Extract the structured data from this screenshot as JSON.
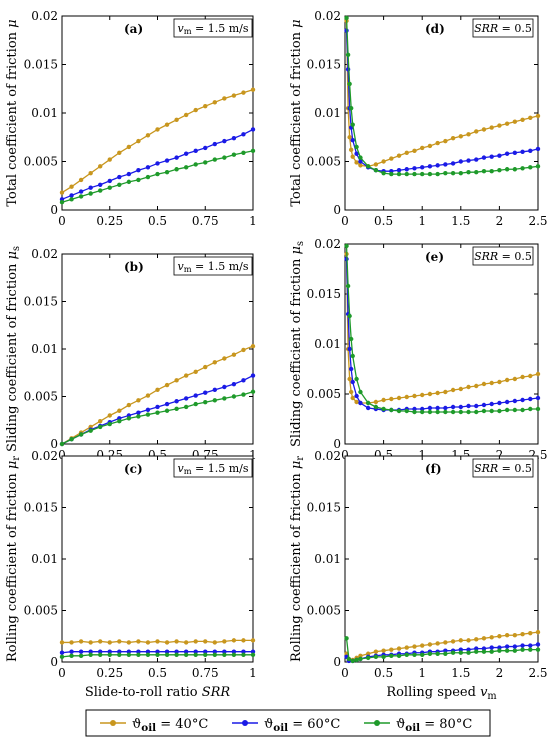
{
  "figure": {
    "legend": [
      {
        "label": "ϑoil = 40°C",
        "color": "#c8961e"
      },
      {
        "label": "ϑoil = 60°C",
        "color": "#1a1ae6"
      },
      {
        "label": "ϑoil = 80°C",
        "color": "#1e9a2a"
      }
    ]
  },
  "chart_data": [
    {
      "id": "a",
      "type": "line",
      "panel_label": "(a)",
      "annotation": "vm = 1.5 m/s",
      "xlabel": "",
      "ylabel": "Total coefficient of friction μ",
      "xlim": [
        0,
        1
      ],
      "ylim": [
        0,
        0.02
      ],
      "xticks": [
        "0",
        "0.25",
        "0.5",
        "0.75",
        "1"
      ],
      "yticks": [
        "0",
        "0.005",
        "0.01",
        "0.015",
        "0.02"
      ],
      "x": [
        0,
        0.05,
        0.1,
        0.15,
        0.2,
        0.25,
        0.3,
        0.35,
        0.4,
        0.45,
        0.5,
        0.55,
        0.6,
        0.65,
        0.7,
        0.75,
        0.8,
        0.85,
        0.9,
        0.95,
        1.0
      ],
      "series": [
        {
          "name": "ϑoil = 40°C",
          "color": "#c8961e",
          "values": [
            0.0018,
            0.0024,
            0.0031,
            0.0038,
            0.0045,
            0.0052,
            0.0059,
            0.0065,
            0.0071,
            0.0077,
            0.0083,
            0.0088,
            0.0093,
            0.0098,
            0.0103,
            0.0107,
            0.0111,
            0.0115,
            0.0118,
            0.0121,
            0.0124
          ]
        },
        {
          "name": "ϑoil = 60°C",
          "color": "#1a1ae6",
          "values": [
            0.0011,
            0.0015,
            0.0019,
            0.0023,
            0.0026,
            0.003,
            0.0034,
            0.0037,
            0.0041,
            0.0044,
            0.0048,
            0.0051,
            0.0054,
            0.0058,
            0.0061,
            0.0064,
            0.0068,
            0.0071,
            0.0074,
            0.0078,
            0.0083
          ]
        },
        {
          "name": "ϑoil = 80°C",
          "color": "#1e9a2a",
          "values": [
            0.0008,
            0.0011,
            0.0014,
            0.0017,
            0.002,
            0.0023,
            0.0026,
            0.0029,
            0.0031,
            0.0034,
            0.0037,
            0.0039,
            0.0042,
            0.0044,
            0.0047,
            0.0049,
            0.0052,
            0.0054,
            0.0057,
            0.0059,
            0.0061
          ]
        }
      ]
    },
    {
      "id": "b",
      "type": "line",
      "panel_label": "(b)",
      "annotation": "vm = 1.5 m/s",
      "xlabel": "",
      "ylabel": "Sliding coefficient of friction μs",
      "xlim": [
        0,
        1
      ],
      "ylim": [
        0,
        0.02
      ],
      "xticks": [
        "0",
        "0.25",
        "0.5",
        "0.75",
        "1"
      ],
      "yticks": [
        "0",
        "0.005",
        "0.01",
        "0.015",
        "0.02"
      ],
      "x": [
        0,
        0.05,
        0.1,
        0.15,
        0.2,
        0.25,
        0.3,
        0.35,
        0.4,
        0.45,
        0.5,
        0.55,
        0.6,
        0.65,
        0.7,
        0.75,
        0.8,
        0.85,
        0.9,
        0.95,
        1.0
      ],
      "series": [
        {
          "name": "ϑoil = 40°C",
          "color": "#c8961e",
          "values": [
            0.0,
            0.0006,
            0.0012,
            0.0018,
            0.0024,
            0.003,
            0.0035,
            0.0041,
            0.0046,
            0.0051,
            0.0057,
            0.0062,
            0.0067,
            0.0072,
            0.0076,
            0.0081,
            0.0086,
            0.009,
            0.0094,
            0.0099,
            0.0103
          ]
        },
        {
          "name": "ϑoil = 60°C",
          "color": "#1a1ae6",
          "values": [
            0.0,
            0.0005,
            0.001,
            0.0015,
            0.0019,
            0.0023,
            0.0027,
            0.003,
            0.0033,
            0.0036,
            0.0039,
            0.0042,
            0.0045,
            0.0048,
            0.0051,
            0.0054,
            0.0057,
            0.006,
            0.0063,
            0.0067,
            0.0072
          ]
        },
        {
          "name": "ϑoil = 80°C",
          "color": "#1e9a2a",
          "values": [
            0.0,
            0.0005,
            0.001,
            0.0014,
            0.0018,
            0.0021,
            0.0024,
            0.0027,
            0.0029,
            0.0031,
            0.0033,
            0.0035,
            0.0037,
            0.0039,
            0.0042,
            0.0044,
            0.0046,
            0.0048,
            0.005,
            0.0052,
            0.0055
          ]
        }
      ]
    },
    {
      "id": "c",
      "type": "line",
      "panel_label": "(c)",
      "annotation": "vm = 1.5 m/s",
      "xlabel": "Slide-to-roll ratio SRR",
      "ylabel": "Rolling coefficient of friction μr",
      "xlim": [
        0,
        1
      ],
      "ylim": [
        0,
        0.02
      ],
      "xticks": [
        "0",
        "0.25",
        "0.5",
        "0.75",
        "1"
      ],
      "yticks": [
        "0",
        "0.005",
        "0.01",
        "0.015",
        "0.02"
      ],
      "x": [
        0,
        0.05,
        0.1,
        0.15,
        0.2,
        0.25,
        0.3,
        0.35,
        0.4,
        0.45,
        0.5,
        0.55,
        0.6,
        0.65,
        0.7,
        0.75,
        0.8,
        0.85,
        0.9,
        0.95,
        1.0
      ],
      "series": [
        {
          "name": "ϑoil = 40°C",
          "color": "#c8961e",
          "values": [
            0.0019,
            0.0019,
            0.002,
            0.0019,
            0.002,
            0.0019,
            0.002,
            0.0019,
            0.002,
            0.0019,
            0.002,
            0.0019,
            0.002,
            0.0019,
            0.002,
            0.002,
            0.0019,
            0.002,
            0.0021,
            0.0021,
            0.0021
          ]
        },
        {
          "name": "ϑoil = 60°C",
          "color": "#1a1ae6",
          "values": [
            0.0009,
            0.001,
            0.001,
            0.001,
            0.001,
            0.001,
            0.001,
            0.001,
            0.001,
            0.001,
            0.001,
            0.001,
            0.001,
            0.001,
            0.001,
            0.001,
            0.001,
            0.001,
            0.001,
            0.001,
            0.001
          ]
        },
        {
          "name": "ϑoil = 80°C",
          "color": "#1e9a2a",
          "values": [
            0.0005,
            0.0006,
            0.0006,
            0.0007,
            0.0007,
            0.0007,
            0.0007,
            0.0007,
            0.0007,
            0.0007,
            0.0007,
            0.0007,
            0.0007,
            0.0007,
            0.0007,
            0.0007,
            0.0007,
            0.0007,
            0.0007,
            0.0007,
            0.0007
          ]
        }
      ]
    },
    {
      "id": "d",
      "type": "line",
      "panel_label": "(d)",
      "annotation": "SRR = 0.5",
      "xlabel": "",
      "ylabel": "Total coefficient of friction μ",
      "xlim": [
        0,
        2.5
      ],
      "ylim": [
        0,
        0.02
      ],
      "xticks": [
        "0",
        "0.5",
        "1",
        "1.5",
        "2",
        "2.5"
      ],
      "yticks": [
        "0",
        "0.005",
        "0.01",
        "0.015",
        "0.02"
      ],
      "x": [
        0.02,
        0.04,
        0.06,
        0.08,
        0.1,
        0.15,
        0.2,
        0.3,
        0.4,
        0.5,
        0.6,
        0.7,
        0.8,
        0.9,
        1.0,
        1.1,
        1.2,
        1.3,
        1.4,
        1.5,
        1.6,
        1.7,
        1.8,
        1.9,
        2.0,
        2.1,
        2.2,
        2.3,
        2.4,
        2.5
      ],
      "series": [
        {
          "name": "ϑoil = 40°C",
          "color": "#c8961e",
          "values": [
            0.0195,
            0.0105,
            0.0075,
            0.0062,
            0.0055,
            0.0049,
            0.0046,
            0.0045,
            0.0047,
            0.005,
            0.0053,
            0.0056,
            0.0059,
            0.0061,
            0.0064,
            0.0066,
            0.0069,
            0.0071,
            0.0074,
            0.0076,
            0.0078,
            0.0081,
            0.0083,
            0.0085,
            0.0087,
            0.0089,
            0.0091,
            0.0093,
            0.0095,
            0.0097
          ]
        },
        {
          "name": "ϑoil = 60°C",
          "color": "#1a1ae6",
          "values": [
            0.0185,
            0.0145,
            0.0105,
            0.0085,
            0.0072,
            0.0058,
            0.005,
            0.0044,
            0.0041,
            0.004,
            0.004,
            0.0041,
            0.0042,
            0.0043,
            0.0044,
            0.0045,
            0.0046,
            0.0047,
            0.0048,
            0.005,
            0.0051,
            0.0052,
            0.0054,
            0.0055,
            0.0056,
            0.0058,
            0.0059,
            0.006,
            0.0061,
            0.0063
          ]
        },
        {
          "name": "ϑoil = 80°C",
          "color": "#1e9a2a",
          "values": [
            0.0198,
            0.016,
            0.013,
            0.0105,
            0.0088,
            0.0065,
            0.0054,
            0.0045,
            0.0041,
            0.0038,
            0.0037,
            0.0037,
            0.0037,
            0.0037,
            0.0037,
            0.0037,
            0.0037,
            0.0038,
            0.0038,
            0.0038,
            0.0039,
            0.0039,
            0.004,
            0.004,
            0.0041,
            0.0042,
            0.0042,
            0.0043,
            0.0044,
            0.0045
          ]
        }
      ]
    },
    {
      "id": "e",
      "type": "line",
      "panel_label": "(e)",
      "annotation": "SRR = 0.5",
      "xlabel": "",
      "ylabel": "Sliding coefficient of friction μs",
      "xlim": [
        0,
        2.5
      ],
      "ylim": [
        0,
        0.02
      ],
      "xticks": [
        "0",
        "0.5",
        "1",
        "1.5",
        "2",
        "2.5"
      ],
      "yticks": [
        "0",
        "0.005",
        "0.01",
        "0.015",
        "0.02"
      ],
      "x": [
        0.02,
        0.04,
        0.06,
        0.08,
        0.1,
        0.15,
        0.2,
        0.3,
        0.4,
        0.5,
        0.6,
        0.7,
        0.8,
        0.9,
        1.0,
        1.1,
        1.2,
        1.3,
        1.4,
        1.5,
        1.6,
        1.7,
        1.8,
        1.9,
        2.0,
        2.1,
        2.2,
        2.3,
        2.4,
        2.5
      ],
      "series": [
        {
          "name": "ϑoil = 40°C",
          "color": "#c8961e",
          "values": [
            0.019,
            0.0095,
            0.0065,
            0.0052,
            0.0046,
            0.0042,
            0.0041,
            0.0041,
            0.0042,
            0.0044,
            0.0045,
            0.0046,
            0.0047,
            0.0048,
            0.0049,
            0.005,
            0.0051,
            0.0052,
            0.0054,
            0.0055,
            0.0057,
            0.0058,
            0.006,
            0.0061,
            0.0062,
            0.0064,
            0.0065,
            0.0067,
            0.0068,
            0.007
          ]
        },
        {
          "name": "ϑoil = 60°C",
          "color": "#1a1ae6",
          "values": [
            0.0185,
            0.013,
            0.0095,
            0.0075,
            0.0062,
            0.0048,
            0.0041,
            0.0036,
            0.0035,
            0.0034,
            0.0034,
            0.0034,
            0.0035,
            0.0035,
            0.0035,
            0.0036,
            0.0036,
            0.0036,
            0.0037,
            0.0037,
            0.0038,
            0.0038,
            0.0039,
            0.004,
            0.0041,
            0.0042,
            0.0043,
            0.0044,
            0.0045,
            0.0046
          ]
        },
        {
          "name": "ϑoil = 80°C",
          "color": "#1e9a2a",
          "values": [
            0.0198,
            0.0158,
            0.0128,
            0.0105,
            0.0088,
            0.0065,
            0.0052,
            0.0041,
            0.0037,
            0.0035,
            0.0034,
            0.0033,
            0.0033,
            0.0032,
            0.0032,
            0.0032,
            0.0032,
            0.0032,
            0.0032,
            0.0032,
            0.0032,
            0.0032,
            0.0033,
            0.0033,
            0.0033,
            0.0034,
            0.0034,
            0.0034,
            0.0035,
            0.0035
          ]
        }
      ]
    },
    {
      "id": "f",
      "type": "line",
      "panel_label": "(f)",
      "annotation": "SRR = 0.5",
      "xlabel": "Rolling speed vm",
      "ylabel": "Rolling coefficient of friction μr",
      "xlim": [
        0,
        2.5
      ],
      "ylim": [
        0,
        0.02
      ],
      "xticks": [
        "0",
        "0.5",
        "1",
        "1.5",
        "2",
        "2.5"
      ],
      "yticks": [
        "0",
        "0.005",
        "0.01",
        "0.015",
        "0.02"
      ],
      "x": [
        0.02,
        0.05,
        0.1,
        0.15,
        0.2,
        0.3,
        0.4,
        0.5,
        0.6,
        0.7,
        0.8,
        0.9,
        1.0,
        1.1,
        1.2,
        1.3,
        1.4,
        1.5,
        1.6,
        1.7,
        1.8,
        1.9,
        2.0,
        2.1,
        2.2,
        2.3,
        2.4,
        2.5
      ],
      "series": [
        {
          "name": "ϑoil = 40°C",
          "color": "#c8961e",
          "values": [
            0.0008,
            0.0002,
            0.0002,
            0.0004,
            0.0006,
            0.0008,
            0.001,
            0.0011,
            0.0012,
            0.0013,
            0.0014,
            0.0015,
            0.0016,
            0.0017,
            0.0018,
            0.0019,
            0.002,
            0.0021,
            0.0021,
            0.0022,
            0.0023,
            0.0024,
            0.0025,
            0.0026,
            0.0026,
            0.0027,
            0.0028,
            0.0029
          ]
        },
        {
          "name": "ϑoil = 60°C",
          "color": "#1a1ae6",
          "values": [
            0.0005,
            0.0001,
            0.0001,
            0.0002,
            0.0003,
            0.0005,
            0.0006,
            0.0007,
            0.0007,
            0.0008,
            0.0008,
            0.0009,
            0.0009,
            0.001,
            0.001,
            0.0011,
            0.0011,
            0.0012,
            0.0012,
            0.0013,
            0.0013,
            0.0014,
            0.0014,
            0.0015,
            0.0015,
            0.0016,
            0.0016,
            0.0017
          ]
        },
        {
          "name": "ϑoil = 80°C",
          "color": "#1e9a2a",
          "values": [
            0.0023,
            0.0003,
            0.0001,
            0.0002,
            0.0003,
            0.0004,
            0.0005,
            0.0005,
            0.0006,
            0.0006,
            0.0007,
            0.0007,
            0.0007,
            0.0008,
            0.0008,
            0.0008,
            0.0009,
            0.0009,
            0.0009,
            0.001,
            0.001,
            0.001,
            0.0011,
            0.0011,
            0.0011,
            0.0012,
            0.0012,
            0.0012
          ]
        }
      ]
    }
  ]
}
